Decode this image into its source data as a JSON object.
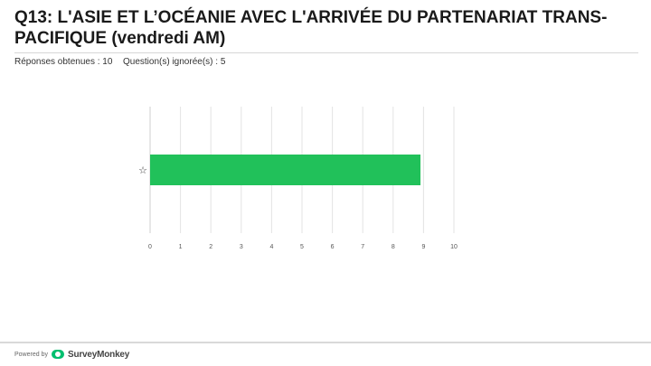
{
  "page": {
    "title": "Q13: L'ASIE ET L’OCÉANIE AVEC L'ARRIVÉE DU PARTENARIAT TRANS-PACIFIQUE (vendredi AM)",
    "answered": "Réponses obtenues : 10",
    "skipped": "Question(s) ignorée(s) : 5"
  },
  "footer": {
    "powered_by": "Powered by",
    "brand": "SurveyMonkey"
  },
  "colors": {
    "bar": "#21c15a",
    "grid": "#e3e3e3",
    "brand": "#00bf6f"
  },
  "chart_data": {
    "type": "bar",
    "orientation": "horizontal",
    "categories": [
      "☆"
    ],
    "values": [
      8.9
    ],
    "title": "",
    "xlabel": "",
    "ylabel": "",
    "xlim": [
      0,
      10
    ],
    "xticks": [
      0,
      1,
      2,
      3,
      4,
      5,
      6,
      7,
      8,
      9,
      10
    ],
    "grid": true,
    "legend": "none"
  }
}
